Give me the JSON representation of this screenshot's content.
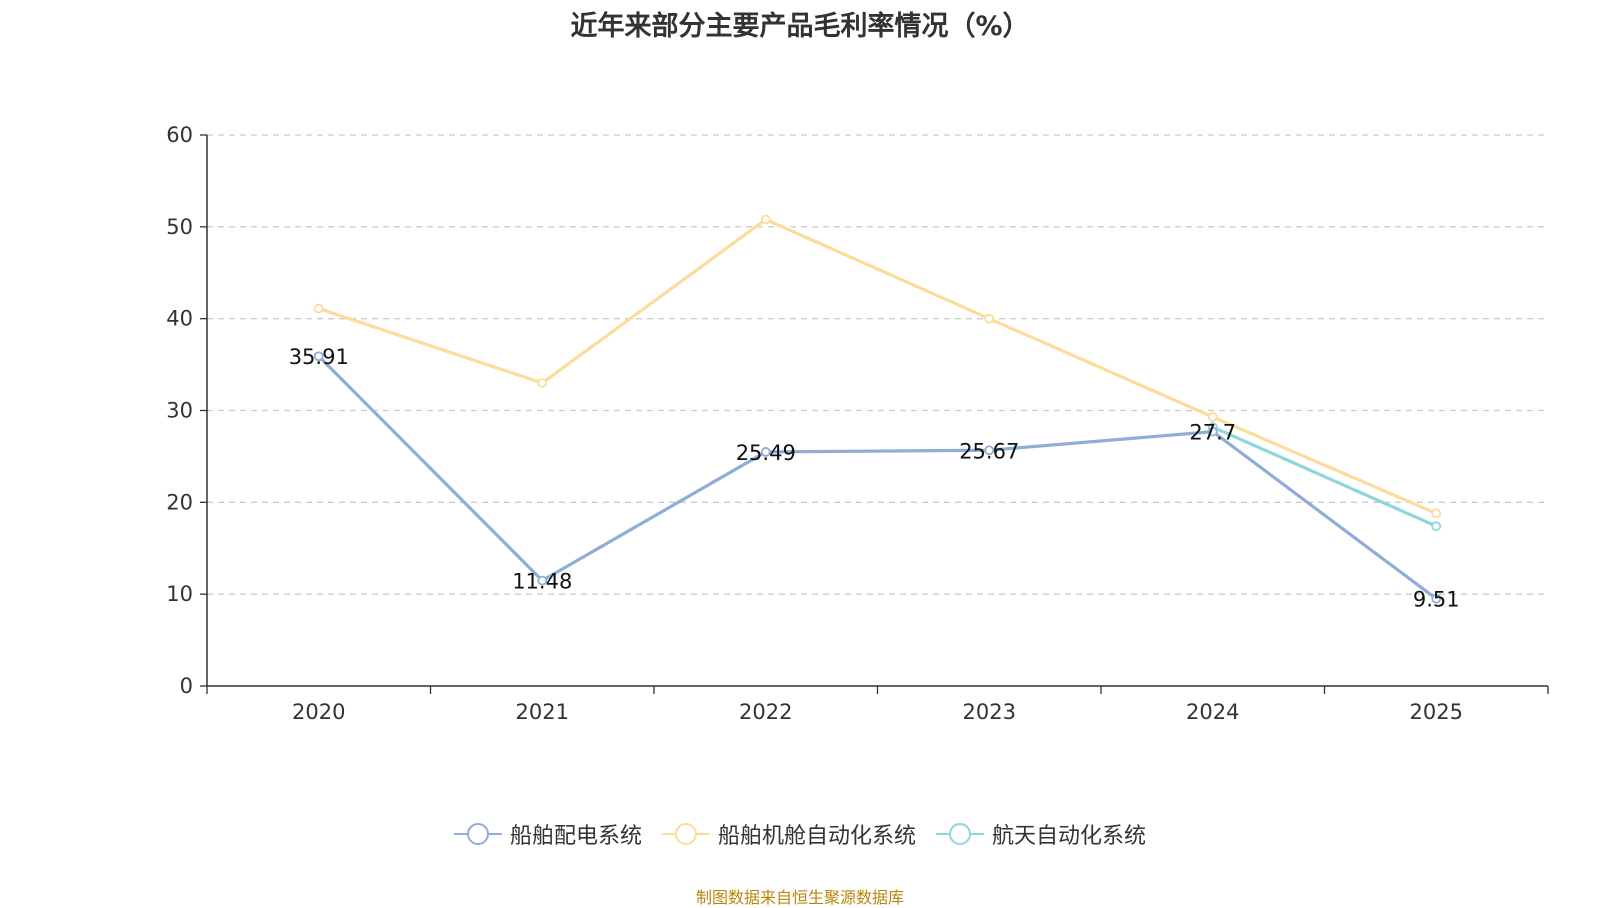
{
  "chart_data": {
    "type": "line",
    "title": "近年来部分主要产品毛利率情况（%）",
    "categories": [
      "2020",
      "2021",
      "2022",
      "2023",
      "2024",
      "2025"
    ],
    "ylim": [
      0,
      60
    ],
    "yticks": [
      0,
      10,
      20,
      30,
      40,
      50,
      60
    ],
    "grid": true,
    "legend_position": "bottom",
    "series": [
      {
        "name": "船舶配电系统",
        "color": "#8fadd9",
        "values": [
          35.91,
          11.48,
          25.49,
          25.67,
          27.7,
          9.51
        ],
        "labels": [
          "35.91",
          "11.48",
          "25.49",
          "25.67",
          "27.7",
          "9.51"
        ]
      },
      {
        "name": "船舶机舱自动化系统",
        "color": "#fcdc9b",
        "values": [
          41.1,
          33.0,
          50.8,
          40.0,
          29.3,
          18.8
        ],
        "labels": []
      },
      {
        "name": "航天自动化系统",
        "color": "#8fd5d9",
        "values": [
          null,
          null,
          null,
          null,
          28.2,
          17.4
        ],
        "labels": []
      }
    ]
  },
  "source": "制图数据来自恒生聚源数据库"
}
